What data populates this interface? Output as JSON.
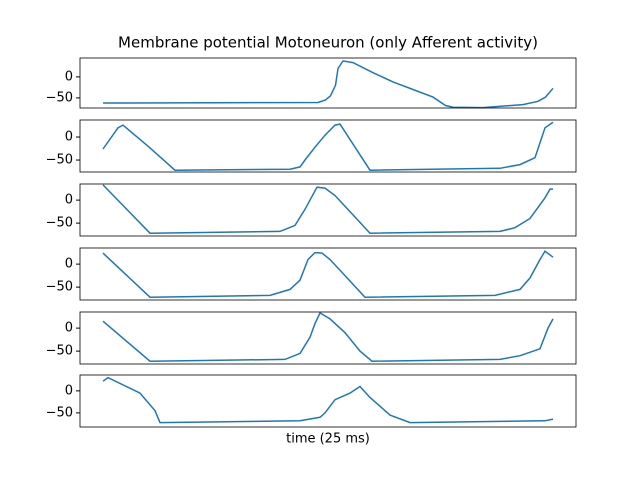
{
  "chart_data": [
    {
      "type": "line",
      "title": "Membrane potential Motoneuron (only Afferent activity)",
      "color": "#1f77b4",
      "x": [
        0,
        43,
        44.5,
        45.5,
        46.5,
        47,
        48,
        50,
        54,
        58,
        62,
        66,
        68.5,
        70,
        76,
        84,
        87,
        88.5,
        90
      ],
      "values": [
        -62,
        -61,
        -55,
        -45,
        -20,
        20,
        38,
        34,
        10,
        -12,
        -30,
        -48,
        -68,
        -72,
        -73,
        -66,
        -58,
        -48,
        -27
      ],
      "xlim": [
        -4.6,
        94.6
      ],
      "ylim": [
        -74,
        45
      ],
      "yticks": [
        {
          "value": -50,
          "label": "−50"
        },
        0
      ]
    },
    {
      "type": "line",
      "color": "#1f77b4",
      "x": [
        0,
        3,
        4,
        9,
        14.4,
        37.4,
        39.4,
        40.4,
        42.4,
        44.4,
        46.4,
        47.4,
        53.4,
        79.4,
        83.4,
        86.4,
        88.4,
        90
      ],
      "values": [
        -26,
        20,
        26,
        -20,
        -72,
        -70,
        -65,
        -50,
        -22,
        4,
        26,
        28,
        -72,
        -68,
        -60,
        -45,
        20,
        32
      ],
      "xlim": [
        -4.6,
        94.6
      ],
      "ylim": [
        -76,
        37
      ],
      "yticks": [
        {
          "value": -50,
          "label": "−50"
        },
        0
      ]
    },
    {
      "type": "line",
      "color": "#1f77b4",
      "x": [
        0,
        9.4,
        35.4,
        38.4,
        40.4,
        42.8,
        44.4,
        46.4,
        49.4,
        53.4,
        79.4,
        82.4,
        85.4,
        88.4,
        89.4,
        90
      ],
      "values": [
        33,
        -72,
        -68,
        -55,
        -20,
        28,
        26,
        10,
        -25,
        -72,
        -68,
        -60,
        -40,
        5,
        24,
        24
      ],
      "xlim": [
        -4.6,
        94.6
      ],
      "ylim": [
        -78,
        35
      ],
      "yticks": [
        {
          "value": -50,
          "label": "−50"
        },
        0
      ]
    },
    {
      "type": "line",
      "color": "#1f77b4",
      "x": [
        0,
        9.4,
        33.4,
        37.4,
        39.4,
        41,
        42.4,
        43.8,
        45.4,
        48.4,
        52.4,
        78.4,
        83.4,
        85.4,
        87.4,
        88.4,
        90
      ],
      "values": [
        24,
        -72,
        -68,
        -55,
        -35,
        10,
        25,
        24,
        10,
        -25,
        -72,
        -68,
        -55,
        -30,
        10,
        28,
        15
      ],
      "xlim": [
        -4.6,
        94.6
      ],
      "ylim": [
        -78,
        35
      ],
      "yticks": [
        {
          "value": -50,
          "label": "−50"
        },
        0
      ]
    },
    {
      "type": "line",
      "color": "#1f77b4",
      "x": [
        0,
        9.4,
        36.4,
        39.4,
        41.4,
        42.4,
        43.4,
        45.4,
        48.4,
        51.4,
        53.8,
        79.4,
        83.4,
        87.4,
        89,
        90
      ],
      "values": [
        15,
        -72,
        -68,
        -55,
        -20,
        10,
        33,
        20,
        -10,
        -50,
        -72,
        -68,
        -60,
        -45,
        0,
        20
      ],
      "xlim": [
        -4.6,
        94.6
      ],
      "ylim": [
        -78,
        35
      ],
      "yticks": [
        {
          "value": -50,
          "label": "−50"
        },
        0
      ]
    },
    {
      "type": "line",
      "xlabel": "time (25 ms)",
      "color": "#1f77b4",
      "x": [
        0,
        1,
        7.4,
        10.4,
        11.4,
        39.4,
        43.4,
        44.4,
        46.4,
        49.4,
        51.4,
        53.4,
        57.4,
        61.4,
        88.4,
        90
      ],
      "values": [
        22,
        30,
        -5,
        -45,
        -72,
        -68,
        -60,
        -50,
        -20,
        -5,
        10,
        -15,
        -55,
        -72,
        -68,
        -64
      ],
      "xlim": [
        -4.6,
        94.6
      ],
      "ylim": [
        -82,
        36
      ],
      "yticks": [
        {
          "value": -50,
          "label": "−50"
        },
        0
      ]
    }
  ]
}
